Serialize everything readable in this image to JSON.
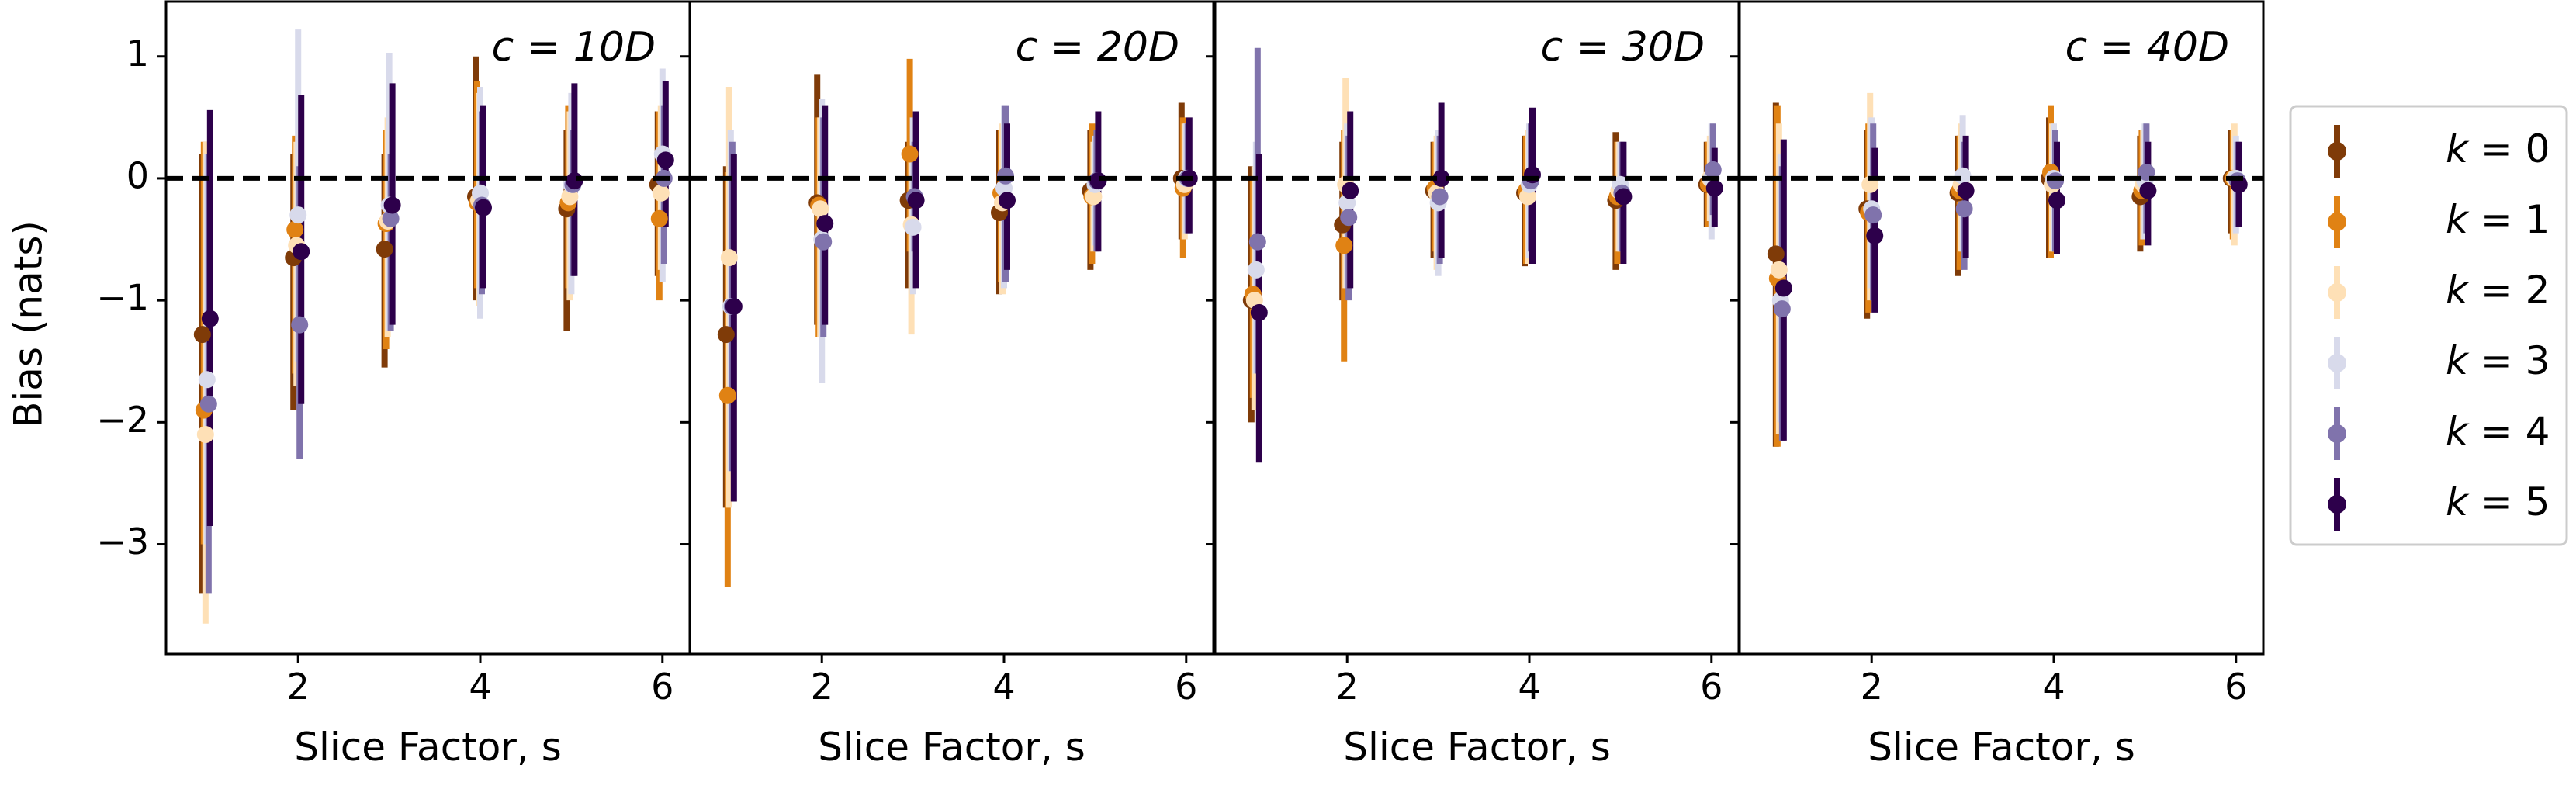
{
  "figure": {
    "ylabel": "Bias (nats)",
    "xlabel": "Slice Factor, s",
    "legend_placement": "right",
    "reference_line_y": 0
  },
  "series_meta": [
    {
      "k": 0,
      "label": "k = 0",
      "color": "#7f3b08"
    },
    {
      "k": 1,
      "label": "k = 1",
      "color": "#e08214"
    },
    {
      "k": 2,
      "label": "k = 2",
      "color": "#fee0b6"
    },
    {
      "k": 3,
      "label": "k = 3",
      "color": "#d8daeb"
    },
    {
      "k": 4,
      "label": "k = 4",
      "color": "#8073ac"
    },
    {
      "k": 5,
      "label": "k = 5",
      "color": "#2d004b"
    }
  ],
  "chart_data": [
    {
      "type": "scatter",
      "title": "c = 10D",
      "xlabel": "Slice Factor, s",
      "ylabel": "Bias (nats)",
      "x": [
        1,
        2,
        3,
        4,
        5,
        6
      ],
      "xticks": [
        2,
        4,
        6
      ],
      "yticks": [
        1,
        0,
        -1,
        -2,
        -3
      ],
      "xlim": [
        0.55,
        6.3
      ],
      "ylim": [
        -3.9,
        1.45
      ],
      "series": [
        {
          "name": "k = 0",
          "values": [
            -1.28,
            -0.65,
            -0.58,
            -0.15,
            -0.25,
            -0.05
          ],
          "err_low": [
            -3.4,
            -1.9,
            -1.55,
            -1.0,
            -1.25,
            -0.8
          ],
          "err_high": [
            0.2,
            0.2,
            0.2,
            1.0,
            0.4,
            0.55
          ]
        },
        {
          "name": "k = 1",
          "values": [
            -1.9,
            -0.42,
            -0.37,
            -0.2,
            -0.2,
            -0.33
          ],
          "err_low": [
            -3.0,
            -1.6,
            -1.4,
            -0.9,
            -0.9,
            -1.0
          ],
          "err_high": [
            0.3,
            0.35,
            0.4,
            0.8,
            0.6,
            0.55
          ]
        },
        {
          "name": "k = 2",
          "values": [
            -2.1,
            -0.55,
            -0.35,
            -0.18,
            -0.15,
            -0.12
          ],
          "err_low": [
            -3.65,
            -1.7,
            -1.3,
            -1.05,
            -1.0,
            -0.75
          ],
          "err_high": [
            0.3,
            0.3,
            0.5,
            0.7,
            0.55,
            0.6
          ]
        },
        {
          "name": "k = 3",
          "values": [
            -1.65,
            -0.3,
            -0.22,
            -0.12,
            -0.05,
            0.2
          ],
          "err_low": [
            -3.0,
            -1.5,
            -1.25,
            -1.15,
            -0.95,
            -0.85
          ],
          "err_high": [
            0.2,
            1.22,
            1.03,
            0.75,
            0.7,
            0.9
          ]
        },
        {
          "name": "k = 4",
          "values": [
            -1.85,
            -1.2,
            -0.33,
            -0.22,
            -0.05,
            0.0
          ],
          "err_low": [
            -3.4,
            -2.3,
            -1.25,
            -0.95,
            -0.8,
            -0.7
          ],
          "err_high": [
            0.2,
            0.1,
            0.2,
            0.55,
            0.4,
            0.6
          ]
        },
        {
          "name": "k = 5",
          "values": [
            -1.15,
            -0.6,
            -0.22,
            -0.24,
            -0.02,
            0.15
          ],
          "err_low": [
            -2.85,
            -1.85,
            -1.2,
            -0.9,
            -0.8,
            -0.4
          ],
          "err_high": [
            0.56,
            0.68,
            0.78,
            0.6,
            0.78,
            0.8
          ]
        }
      ]
    },
    {
      "type": "scatter",
      "title": "c = 20D",
      "xlabel": "Slice Factor, s",
      "ylabel": "",
      "x": [
        1,
        2,
        3,
        4,
        5,
        6
      ],
      "xticks": [
        2,
        4,
        6
      ],
      "yticks": [
        1,
        0,
        -1,
        -2,
        -3
      ],
      "xlim": [
        0.55,
        6.3
      ],
      "ylim": [
        -3.9,
        1.45
      ],
      "series": [
        {
          "name": "k = 0",
          "values": [
            -1.28,
            -0.2,
            -0.18,
            -0.28,
            -0.1,
            0.0
          ],
          "err_low": [
            -2.7,
            -1.2,
            -0.9,
            -0.95,
            -0.75,
            -0.5
          ],
          "err_high": [
            0.1,
            0.85,
            0.3,
            0.4,
            0.4,
            0.62
          ]
        },
        {
          "name": "k = 1",
          "values": [
            -1.78,
            -0.22,
            0.2,
            -0.12,
            -0.15,
            -0.08
          ],
          "err_low": [
            -3.35,
            -1.3,
            -0.6,
            -0.85,
            -0.7,
            -0.65
          ],
          "err_high": [
            0.05,
            0.5,
            0.98,
            0.4,
            0.45,
            0.5
          ]
        },
        {
          "name": "k = 2",
          "values": [
            -0.65,
            -0.25,
            -0.38,
            -0.2,
            -0.15,
            -0.05
          ],
          "err_low": [
            -2.7,
            -1.3,
            -1.28,
            -0.95,
            -0.6,
            -0.5
          ],
          "err_high": [
            0.75,
            0.5,
            0.25,
            0.45,
            0.3,
            0.45
          ]
        },
        {
          "name": "k = 3",
          "values": [
            -1.05,
            -0.5,
            -0.4,
            -0.08,
            -0.05,
            0.0
          ],
          "err_low": [
            -2.4,
            -1.68,
            -0.95,
            -0.9,
            -0.55,
            -0.45
          ],
          "err_high": [
            0.4,
            0.65,
            0.5,
            0.6,
            0.35,
            0.45
          ]
        },
        {
          "name": "k = 4",
          "values": [
            -1.05,
            -0.52,
            -0.15,
            0.02,
            -0.02,
            0.0
          ],
          "err_low": [
            -2.4,
            -1.3,
            -0.6,
            -0.85,
            -0.6,
            -0.45
          ],
          "err_high": [
            0.3,
            0.5,
            0.3,
            0.6,
            0.4,
            0.45
          ]
        },
        {
          "name": "k = 5",
          "values": [
            -1.05,
            -0.37,
            -0.18,
            -0.18,
            -0.02,
            0.0
          ],
          "err_low": [
            -2.65,
            -1.2,
            -0.9,
            -0.75,
            -0.6,
            -0.45
          ],
          "err_high": [
            0.2,
            0.6,
            0.55,
            0.45,
            0.55,
            0.5
          ]
        }
      ]
    },
    {
      "type": "scatter",
      "title": "c = 30D",
      "xlabel": "Slice Factor, s",
      "ylabel": "",
      "x": [
        1,
        2,
        3,
        4,
        5,
        6
      ],
      "xticks": [
        2,
        4,
        6
      ],
      "yticks": [
        1,
        0,
        -1,
        -2,
        -3
      ],
      "xlim": [
        0.55,
        6.3
      ],
      "ylim": [
        -3.9,
        1.45
      ],
      "series": [
        {
          "name": "k = 0",
          "values": [
            -1.0,
            -0.38,
            -0.1,
            -0.12,
            -0.18,
            -0.05
          ],
          "err_low": [
            -2.0,
            -1.0,
            -0.65,
            -0.72,
            -0.75,
            -0.4
          ],
          "err_high": [
            0.1,
            0.3,
            0.3,
            0.35,
            0.38,
            0.3
          ]
        },
        {
          "name": "k = 1",
          "values": [
            -0.95,
            -0.55,
            -0.08,
            -0.1,
            -0.15,
            -0.05
          ],
          "err_low": [
            -1.8,
            -1.5,
            -0.6,
            -0.7,
            -0.7,
            -0.4
          ],
          "err_high": [
            0.0,
            0.4,
            0.3,
            0.35,
            0.3,
            0.3
          ]
        },
        {
          "name": "k = 2",
          "values": [
            -1.0,
            -0.05,
            -0.12,
            -0.15,
            -0.1,
            0.0
          ],
          "err_low": [
            -1.9,
            -0.9,
            -0.75,
            -0.7,
            -0.6,
            -0.35
          ],
          "err_high": [
            0.1,
            0.82,
            0.35,
            0.4,
            0.3,
            0.35
          ]
        },
        {
          "name": "k = 3",
          "values": [
            -0.75,
            -0.2,
            -0.2,
            -0.05,
            -0.05,
            0.0
          ],
          "err_low": [
            -1.6,
            -0.9,
            -0.8,
            -0.65,
            -0.6,
            -0.5
          ],
          "err_high": [
            0.3,
            0.45,
            0.4,
            0.45,
            0.3,
            0.45
          ]
        },
        {
          "name": "k = 4",
          "values": [
            -0.52,
            -0.32,
            -0.15,
            -0.02,
            -0.12,
            0.07
          ],
          "err_low": [
            -1.6,
            -1.0,
            -0.7,
            -0.6,
            -0.6,
            -0.3
          ],
          "err_high": [
            1.07,
            0.35,
            0.35,
            0.45,
            0.3,
            0.45
          ]
        },
        {
          "name": "k = 5",
          "values": [
            -1.1,
            -0.1,
            0.0,
            0.03,
            -0.15,
            -0.08
          ],
          "err_low": [
            -2.33,
            -0.9,
            -0.65,
            -0.7,
            -0.7,
            -0.4
          ],
          "err_high": [
            0.2,
            0.55,
            0.62,
            0.58,
            0.3,
            0.25
          ]
        }
      ]
    },
    {
      "type": "scatter",
      "title": "c = 40D",
      "xlabel": "Slice Factor, s",
      "ylabel": "",
      "x": [
        1,
        2,
        3,
        4,
        5,
        6
      ],
      "xticks": [
        2,
        4,
        6
      ],
      "yticks": [
        1,
        0,
        -1,
        -2,
        -3
      ],
      "xlim": [
        0.55,
        6.3
      ],
      "ylim": [
        -3.9,
        1.45
      ],
      "series": [
        {
          "name": "k = 0",
          "values": [
            -0.62,
            -0.25,
            -0.12,
            0.0,
            -0.15,
            0.0
          ],
          "err_low": [
            -2.2,
            -1.15,
            -0.8,
            -0.65,
            -0.6,
            -0.45
          ],
          "err_high": [
            0.62,
            0.4,
            0.35,
            0.5,
            0.35,
            0.4
          ]
        },
        {
          "name": "k = 1",
          "values": [
            -0.82,
            -0.28,
            -0.1,
            0.05,
            -0.1,
            0.0
          ],
          "err_low": [
            -2.2,
            -1.1,
            -0.75,
            -0.65,
            -0.55,
            -0.5
          ],
          "err_high": [
            0.6,
            0.45,
            0.35,
            0.6,
            0.4,
            0.4
          ]
        },
        {
          "name": "k = 2",
          "values": [
            -0.75,
            -0.05,
            -0.05,
            -0.05,
            -0.05,
            0.0
          ],
          "err_low": [
            -2.1,
            -1.0,
            -0.6,
            -0.6,
            -0.5,
            -0.55
          ],
          "err_high": [
            0.45,
            0.7,
            0.45,
            0.45,
            0.4,
            0.45
          ]
        },
        {
          "name": "k = 3",
          "values": [
            -1.0,
            -0.25,
            0.02,
            0.0,
            -0.02,
            0.0
          ],
          "err_low": [
            -2.0,
            -0.9,
            -0.6,
            -0.6,
            -0.5,
            -0.45
          ],
          "err_high": [
            0.2,
            0.5,
            0.52,
            0.45,
            0.45,
            0.35
          ]
        },
        {
          "name": "k = 4",
          "values": [
            -1.07,
            -0.3,
            -0.25,
            -0.02,
            0.05,
            -0.02
          ],
          "err_low": [
            -2.15,
            -1.0,
            -0.75,
            -0.6,
            -0.45,
            -0.4
          ],
          "err_high": [
            0.1,
            0.45,
            0.3,
            0.4,
            0.45,
            0.3
          ]
        },
        {
          "name": "k = 5",
          "values": [
            -0.9,
            -0.47,
            -0.1,
            -0.18,
            -0.1,
            -0.05
          ],
          "err_low": [
            -2.15,
            -1.1,
            -0.65,
            -0.62,
            -0.55,
            -0.4
          ],
          "err_high": [
            0.32,
            0.25,
            0.35,
            0.3,
            0.3,
            0.3
          ]
        }
      ]
    }
  ]
}
